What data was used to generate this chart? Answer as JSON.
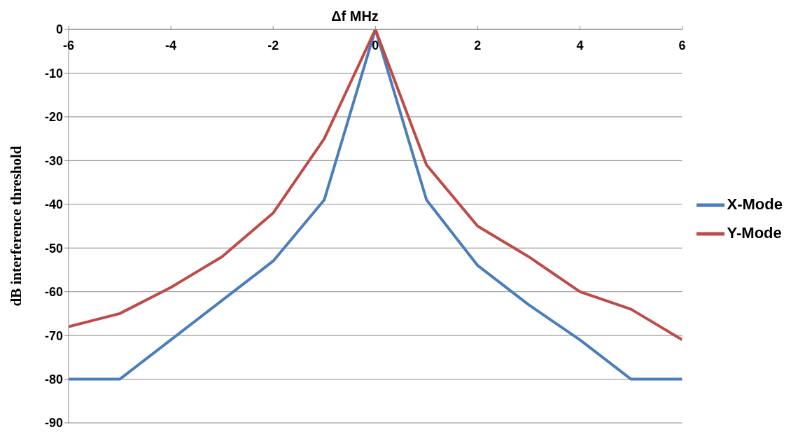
{
  "chart_data": {
    "type": "line",
    "xlabel": "Δf MHz",
    "ylabel": "dB interference threshold",
    "x": [
      -6,
      -5,
      -4,
      -3,
      -2,
      -1,
      0,
      1,
      2,
      3,
      4,
      5,
      6
    ],
    "series": [
      {
        "name": "X-Mode",
        "color": "#4a7ebb",
        "values": [
          -80,
          -80,
          -71,
          -62,
          -53,
          -39,
          0,
          -39,
          -54,
          -63,
          -71,
          -80,
          -80
        ]
      },
      {
        "name": "Y-Mode",
        "color": "#be4b48",
        "values": [
          -68,
          -65,
          -59,
          -52,
          -42,
          -25,
          0,
          -31,
          -45,
          -52,
          -60,
          -64,
          -71
        ]
      }
    ],
    "xlim": [
      -6,
      6
    ],
    "xticks": [
      -6,
      -4,
      -2,
      0,
      2,
      4,
      6
    ],
    "ylim": [
      -90,
      0
    ],
    "yticks": [
      0,
      -10,
      -20,
      -30,
      -40,
      -50,
      -60,
      -70,
      -80,
      -90
    ],
    "grid": "y",
    "legend": "right",
    "marker": "none",
    "line_style": "solid"
  }
}
